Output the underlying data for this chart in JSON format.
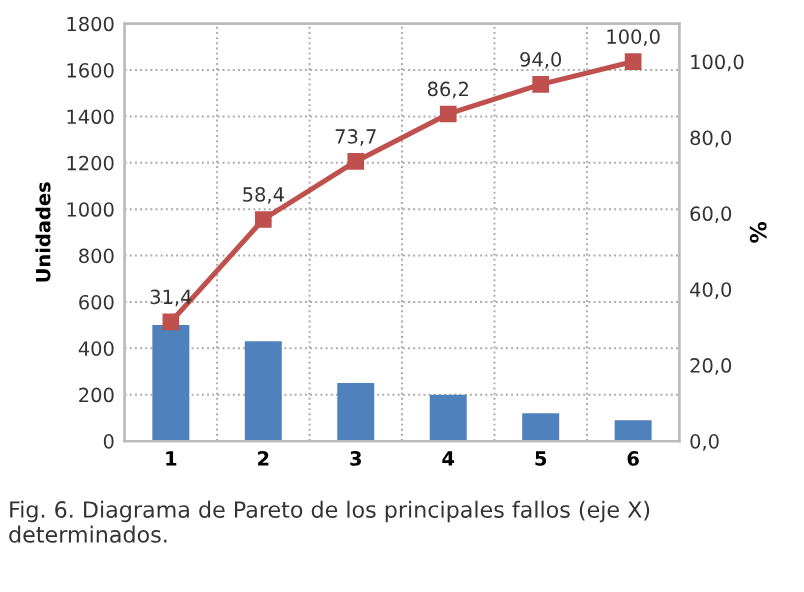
{
  "chart_data": {
    "type": "bar",
    "categories": [
      "1",
      "2",
      "3",
      "4",
      "5",
      "6"
    ],
    "ylabel": "Unidades",
    "y2label": "%",
    "series": [
      {
        "color": "#4f81bd",
        "values": [
          500,
          430,
          250,
          200,
          120,
          90
        ]
      },
      {
        "type": "line",
        "axis": "y2",
        "color": "#c0504d",
        "values": [
          31.4,
          58.4,
          73.7,
          86.2,
          94.0,
          100.0
        ],
        "value_labels": [
          "31,4",
          "58,4",
          "73,7",
          "86,2",
          "94,0",
          "100,0"
        ]
      }
    ],
    "ylim": [
      0,
      1800
    ],
    "yticks": [
      0,
      200,
      400,
      600,
      800,
      1000,
      1200,
      1400,
      1600,
      1800
    ],
    "y2lim": [
      0,
      110
    ],
    "y2ticks": [
      {
        "value": 0,
        "label": "0,0"
      },
      {
        "value": 20,
        "label": "20,0"
      },
      {
        "value": 40,
        "label": "40,0"
      },
      {
        "value": 60,
        "label": "60,0"
      },
      {
        "value": 80,
        "label": "80,0"
      },
      {
        "value": 100,
        "label": "100,0"
      }
    ],
    "grid": true,
    "marker": "square",
    "line_style": "solid",
    "annotations": [
      "Fig. 6. Diagrama de Pareto de los principales fallos (eje X) determinados."
    ]
  }
}
